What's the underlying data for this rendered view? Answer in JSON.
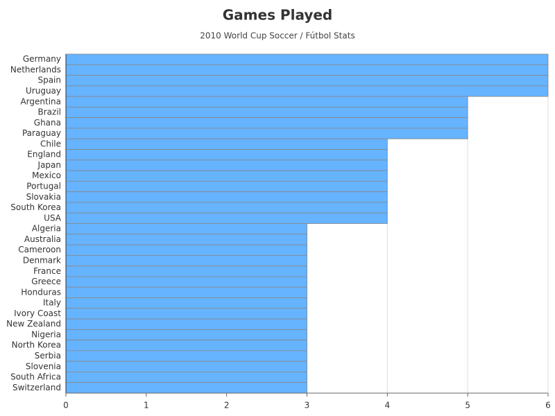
{
  "chart_data": {
    "type": "hbar",
    "title": "Games Played",
    "subtitle": "2010 World Cup Soccer / Fútbol Stats",
    "categories": [
      "Germany",
      "Netherlands",
      "Spain",
      "Uruguay",
      "Argentina",
      "Brazil",
      "Ghana",
      "Paraguay",
      "Chile",
      "England",
      "Japan",
      "Mexico",
      "Portugal",
      "Slovakia",
      "South Korea",
      "USA",
      "Algeria",
      "Australia",
      "Cameroon",
      "Denmark",
      "France",
      "Greece",
      "Honduras",
      "Italy",
      "Ivory Coast",
      "New Zealand",
      "Nigeria",
      "North Korea",
      "Serbia",
      "Slovenia",
      "South Africa",
      "Switzerland"
    ],
    "values": [
      6,
      6,
      6,
      6,
      5,
      5,
      5,
      5,
      4,
      4,
      4,
      4,
      4,
      4,
      4,
      4,
      3,
      3,
      3,
      3,
      3,
      3,
      3,
      3,
      3,
      3,
      3,
      3,
      3,
      3,
      3,
      3
    ],
    "color": "#66b3ff",
    "xlim": [
      0,
      6
    ],
    "xticks": [
      0,
      1,
      2,
      3,
      4,
      5,
      6
    ],
    "grid": true
  }
}
